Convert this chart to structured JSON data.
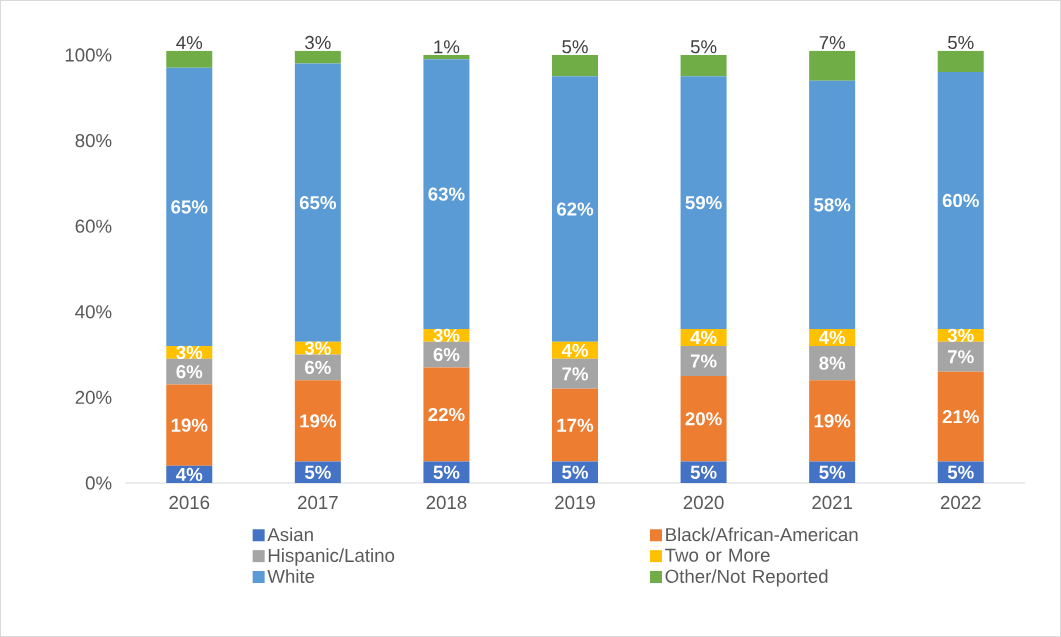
{
  "chart_data": {
    "type": "bar",
    "stacked": true,
    "legend": "bottom",
    "grid": false,
    "categories": [
      "2016",
      "2017",
      "2018",
      "2019",
      "2020",
      "2021",
      "2022"
    ],
    "ylim": [
      0,
      101
    ],
    "yticks": [
      {
        "value": 0,
        "label": "0%"
      },
      {
        "value": 20,
        "label": "20%"
      },
      {
        "value": 40,
        "label": "40%"
      },
      {
        "value": 60,
        "label": "60%"
      },
      {
        "value": 80,
        "label": "80%"
      },
      {
        "value": 100,
        "label": "100%"
      }
    ],
    "series": [
      {
        "name": "Asian",
        "color": "#4472c4",
        "values": [
          4,
          5,
          5,
          5,
          5,
          5,
          5
        ],
        "value_labels": [
          "4%",
          "5%",
          "5%",
          "5%",
          "5%",
          "5%",
          "5%"
        ]
      },
      {
        "name": "Black/African-American",
        "color": "#ed7d31",
        "values": [
          19,
          19,
          22,
          17,
          20,
          19,
          21
        ],
        "value_labels": [
          "19%",
          "19%",
          "22%",
          "17%",
          "20%",
          "19%",
          "21%"
        ]
      },
      {
        "name": "Hispanic/Latino",
        "color": "#a5a5a5",
        "values": [
          6,
          6,
          6,
          7,
          7,
          8,
          7
        ],
        "value_labels": [
          "6%",
          "6%",
          "6%",
          "7%",
          "7%",
          "8%",
          "7%"
        ]
      },
      {
        "name": "Two or More",
        "color": "#ffc000",
        "values": [
          3,
          3,
          3,
          4,
          4,
          4,
          3
        ],
        "value_labels": [
          "3%",
          "3%",
          "3%",
          "4%",
          "4%",
          "4%",
          "3%"
        ]
      },
      {
        "name": "White",
        "color": "#5b9bd5",
        "values": [
          65,
          65,
          63,
          62,
          59,
          58,
          60
        ],
        "value_labels": [
          "65%",
          "65%",
          "63%",
          "62%",
          "59%",
          "58%",
          "60%"
        ]
      },
      {
        "name": "Other/Not Reported",
        "color": "#70ad47",
        "values": [
          4,
          3,
          1,
          5,
          5,
          7,
          5
        ],
        "value_labels": [
          "4%",
          "3%",
          "1%",
          "5%",
          "5%",
          "7%",
          "5%"
        ]
      }
    ]
  }
}
